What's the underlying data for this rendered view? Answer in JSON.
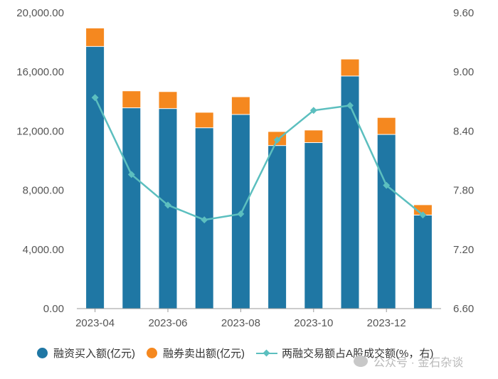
{
  "chart_data": {
    "type": "bar",
    "stacked": true,
    "categories": [
      "2023-04",
      "2023-05",
      "2023-06",
      "2023-07",
      "2023-08",
      "2023-09",
      "2023-10",
      "2023-11",
      "2023-12",
      "2024-01"
    ],
    "x_tick_labels": [
      "2023-04",
      "2023-06",
      "2023-08",
      "2023-10",
      "2023-12"
    ],
    "series": [
      {
        "name": "融资买入额(亿元)",
        "type": "bar",
        "axis": "left",
        "color": "#1f77a4",
        "values": [
          17700,
          13550,
          13500,
          12200,
          13100,
          11000,
          11200,
          15700,
          11750,
          6300
        ]
      },
      {
        "name": "融券卖出额(亿元)",
        "type": "bar",
        "axis": "left",
        "color": "#f5881f",
        "values": [
          1250,
          1150,
          1150,
          1050,
          1200,
          950,
          850,
          1150,
          1150,
          700
        ]
      },
      {
        "name": "两融交易额占A股成交额(%，右)",
        "type": "line",
        "axis": "right",
        "color": "#5cbfbf",
        "values": [
          8.74,
          7.96,
          7.65,
          7.5,
          7.56,
          8.31,
          8.61,
          8.66,
          7.85,
          7.55
        ]
      }
    ],
    "y_left": {
      "ylim": [
        0,
        20000
      ],
      "ticks": [
        "0.00",
        "4,000.00",
        "8,000.00",
        "12,000.00",
        "16,000.00",
        "20,000.00"
      ]
    },
    "y_right": {
      "ylim": [
        6.6,
        9.6
      ],
      "ticks": [
        "6.60",
        "7.20",
        "7.80",
        "8.40",
        "9.00",
        "9.60"
      ]
    },
    "grid": false,
    "legend_position": "bottom"
  },
  "legend": {
    "items": [
      {
        "label": "融资买入额(亿元)",
        "color": "#1f77a4",
        "marker": "dot"
      },
      {
        "label": "融券卖出额(亿元)",
        "color": "#f5881f",
        "marker": "dot"
      },
      {
        "label": "两融交易额占A股成交额(%，右)",
        "color": "#5cbfbf",
        "marker": "line"
      }
    ]
  },
  "watermark": {
    "text": "公众号 · 金石杂谈"
  }
}
